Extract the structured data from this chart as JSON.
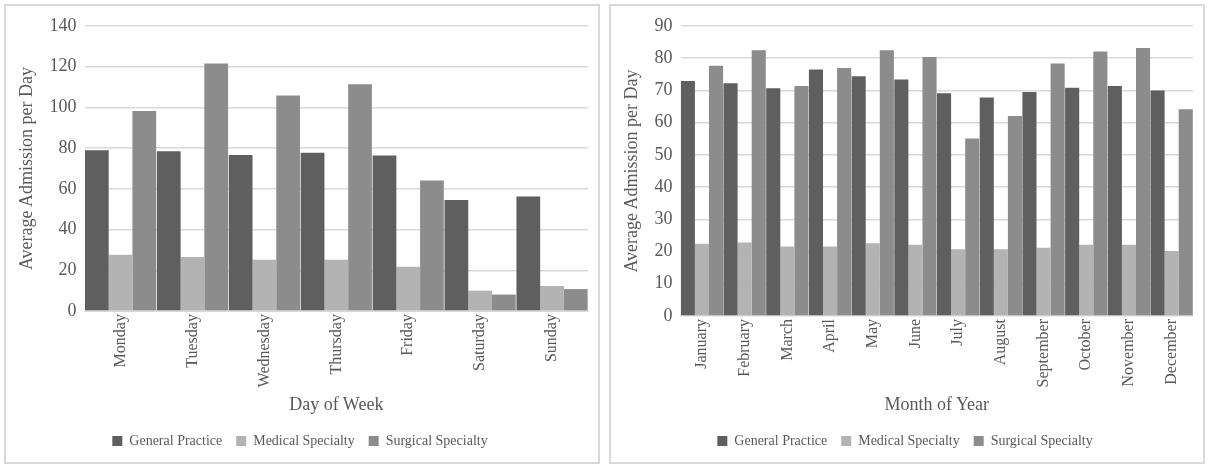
{
  "chart_data": [
    {
      "type": "bar",
      "xlabel": "Day of Week",
      "ylabel": "Average Admission per Day",
      "categories": [
        "Monday",
        "Tuesday",
        "Wednesday",
        "Thursday",
        "Friday",
        "Saturday",
        "Sunday"
      ],
      "series": [
        {
          "name": "General Practice",
          "color": "#5f5f5f",
          "values": [
            79,
            78.5,
            76.7,
            77.8,
            76.4,
            54.6,
            56.2
          ]
        },
        {
          "name": "Medical Specialty",
          "color": "#b3b3b3",
          "values": [
            27.6,
            26.5,
            25.2,
            25.2,
            21.8,
            10,
            12.3
          ]
        },
        {
          "name": "Surgical Specialty",
          "color": "#8c8c8c",
          "values": [
            98.2,
            121.6,
            105.9,
            111.4,
            64.1,
            8.1,
            10.8
          ]
        }
      ],
      "ylim": [
        0,
        140
      ],
      "yticks": [
        0,
        20,
        40,
        60,
        80,
        100,
        120,
        140
      ],
      "grid": "y",
      "legend": "bottom"
    },
    {
      "type": "bar",
      "xlabel": "Month of Year",
      "ylabel": "Average Admission per Day",
      "categories": [
        "January",
        "February",
        "March",
        "April",
        "May",
        "June",
        "July",
        "August",
        "September",
        "October",
        "November",
        "December"
      ],
      "series": [
        {
          "name": "General Practice",
          "color": "#5f5f5f",
          "values": [
            72.9,
            72.2,
            70.7,
            76.5,
            74.4,
            73.4,
            69.1,
            67.8,
            69.5,
            70.8,
            71.4,
            70.0
          ]
        },
        {
          "name": "Medical Specialty",
          "color": "#b3b3b3",
          "values": [
            22.4,
            22.8,
            21.6,
            21.6,
            22.6,
            22.1,
            20.7,
            20.7,
            21.2,
            22.1,
            22.1,
            20.2
          ]
        },
        {
          "name": "Surgical Specialty",
          "color": "#8c8c8c",
          "values": [
            77.7,
            82.5,
            71.4,
            77.0,
            82.5,
            80.4,
            55.1,
            62.1,
            78.4,
            82.1,
            83.2,
            64.2
          ]
        }
      ],
      "ylim": [
        0,
        90
      ],
      "yticks": [
        0,
        10,
        20,
        30,
        40,
        50,
        60,
        70,
        80,
        90
      ],
      "grid": "y",
      "legend": "bottom"
    }
  ]
}
